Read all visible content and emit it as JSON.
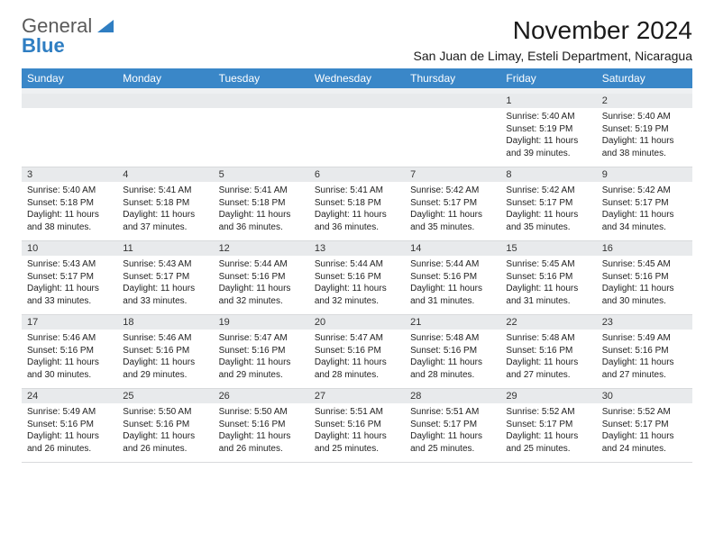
{
  "brand": {
    "line1": "General",
    "line2": "Blue"
  },
  "title": "November 2024",
  "location": "San Juan de Limay, Esteli Department, Nicaragua",
  "colors": {
    "header_bg": "#3a87c8",
    "header_fg": "#ffffff",
    "daynum_bg": "#e8eaec",
    "spacer_bg": "#eef0f2",
    "brand_gray": "#5a5a5a",
    "brand_blue": "#2f7ec2",
    "page_bg": "#ffffff"
  },
  "weekdays": [
    "Sunday",
    "Monday",
    "Tuesday",
    "Wednesday",
    "Thursday",
    "Friday",
    "Saturday"
  ],
  "weeks": [
    {
      "nums": [
        "",
        "",
        "",
        "",
        "",
        "1",
        "2"
      ],
      "cells": [
        null,
        null,
        null,
        null,
        null,
        {
          "sunrise": "Sunrise: 5:40 AM",
          "sunset": "Sunset: 5:19 PM",
          "day1": "Daylight: 11 hours",
          "day2": "and 39 minutes."
        },
        {
          "sunrise": "Sunrise: 5:40 AM",
          "sunset": "Sunset: 5:19 PM",
          "day1": "Daylight: 11 hours",
          "day2": "and 38 minutes."
        }
      ]
    },
    {
      "nums": [
        "3",
        "4",
        "5",
        "6",
        "7",
        "8",
        "9"
      ],
      "cells": [
        {
          "sunrise": "Sunrise: 5:40 AM",
          "sunset": "Sunset: 5:18 PM",
          "day1": "Daylight: 11 hours",
          "day2": "and 38 minutes."
        },
        {
          "sunrise": "Sunrise: 5:41 AM",
          "sunset": "Sunset: 5:18 PM",
          "day1": "Daylight: 11 hours",
          "day2": "and 37 minutes."
        },
        {
          "sunrise": "Sunrise: 5:41 AM",
          "sunset": "Sunset: 5:18 PM",
          "day1": "Daylight: 11 hours",
          "day2": "and 36 minutes."
        },
        {
          "sunrise": "Sunrise: 5:41 AM",
          "sunset": "Sunset: 5:18 PM",
          "day1": "Daylight: 11 hours",
          "day2": "and 36 minutes."
        },
        {
          "sunrise": "Sunrise: 5:42 AM",
          "sunset": "Sunset: 5:17 PM",
          "day1": "Daylight: 11 hours",
          "day2": "and 35 minutes."
        },
        {
          "sunrise": "Sunrise: 5:42 AM",
          "sunset": "Sunset: 5:17 PM",
          "day1": "Daylight: 11 hours",
          "day2": "and 35 minutes."
        },
        {
          "sunrise": "Sunrise: 5:42 AM",
          "sunset": "Sunset: 5:17 PM",
          "day1": "Daylight: 11 hours",
          "day2": "and 34 minutes."
        }
      ]
    },
    {
      "nums": [
        "10",
        "11",
        "12",
        "13",
        "14",
        "15",
        "16"
      ],
      "cells": [
        {
          "sunrise": "Sunrise: 5:43 AM",
          "sunset": "Sunset: 5:17 PM",
          "day1": "Daylight: 11 hours",
          "day2": "and 33 minutes."
        },
        {
          "sunrise": "Sunrise: 5:43 AM",
          "sunset": "Sunset: 5:17 PM",
          "day1": "Daylight: 11 hours",
          "day2": "and 33 minutes."
        },
        {
          "sunrise": "Sunrise: 5:44 AM",
          "sunset": "Sunset: 5:16 PM",
          "day1": "Daylight: 11 hours",
          "day2": "and 32 minutes."
        },
        {
          "sunrise": "Sunrise: 5:44 AM",
          "sunset": "Sunset: 5:16 PM",
          "day1": "Daylight: 11 hours",
          "day2": "and 32 minutes."
        },
        {
          "sunrise": "Sunrise: 5:44 AM",
          "sunset": "Sunset: 5:16 PM",
          "day1": "Daylight: 11 hours",
          "day2": "and 31 minutes."
        },
        {
          "sunrise": "Sunrise: 5:45 AM",
          "sunset": "Sunset: 5:16 PM",
          "day1": "Daylight: 11 hours",
          "day2": "and 31 minutes."
        },
        {
          "sunrise": "Sunrise: 5:45 AM",
          "sunset": "Sunset: 5:16 PM",
          "day1": "Daylight: 11 hours",
          "day2": "and 30 minutes."
        }
      ]
    },
    {
      "nums": [
        "17",
        "18",
        "19",
        "20",
        "21",
        "22",
        "23"
      ],
      "cells": [
        {
          "sunrise": "Sunrise: 5:46 AM",
          "sunset": "Sunset: 5:16 PM",
          "day1": "Daylight: 11 hours",
          "day2": "and 30 minutes."
        },
        {
          "sunrise": "Sunrise: 5:46 AM",
          "sunset": "Sunset: 5:16 PM",
          "day1": "Daylight: 11 hours",
          "day2": "and 29 minutes."
        },
        {
          "sunrise": "Sunrise: 5:47 AM",
          "sunset": "Sunset: 5:16 PM",
          "day1": "Daylight: 11 hours",
          "day2": "and 29 minutes."
        },
        {
          "sunrise": "Sunrise: 5:47 AM",
          "sunset": "Sunset: 5:16 PM",
          "day1": "Daylight: 11 hours",
          "day2": "and 28 minutes."
        },
        {
          "sunrise": "Sunrise: 5:48 AM",
          "sunset": "Sunset: 5:16 PM",
          "day1": "Daylight: 11 hours",
          "day2": "and 28 minutes."
        },
        {
          "sunrise": "Sunrise: 5:48 AM",
          "sunset": "Sunset: 5:16 PM",
          "day1": "Daylight: 11 hours",
          "day2": "and 27 minutes."
        },
        {
          "sunrise": "Sunrise: 5:49 AM",
          "sunset": "Sunset: 5:16 PM",
          "day1": "Daylight: 11 hours",
          "day2": "and 27 minutes."
        }
      ]
    },
    {
      "nums": [
        "24",
        "25",
        "26",
        "27",
        "28",
        "29",
        "30"
      ],
      "cells": [
        {
          "sunrise": "Sunrise: 5:49 AM",
          "sunset": "Sunset: 5:16 PM",
          "day1": "Daylight: 11 hours",
          "day2": "and 26 minutes."
        },
        {
          "sunrise": "Sunrise: 5:50 AM",
          "sunset": "Sunset: 5:16 PM",
          "day1": "Daylight: 11 hours",
          "day2": "and 26 minutes."
        },
        {
          "sunrise": "Sunrise: 5:50 AM",
          "sunset": "Sunset: 5:16 PM",
          "day1": "Daylight: 11 hours",
          "day2": "and 26 minutes."
        },
        {
          "sunrise": "Sunrise: 5:51 AM",
          "sunset": "Sunset: 5:16 PM",
          "day1": "Daylight: 11 hours",
          "day2": "and 25 minutes."
        },
        {
          "sunrise": "Sunrise: 5:51 AM",
          "sunset": "Sunset: 5:17 PM",
          "day1": "Daylight: 11 hours",
          "day2": "and 25 minutes."
        },
        {
          "sunrise": "Sunrise: 5:52 AM",
          "sunset": "Sunset: 5:17 PM",
          "day1": "Daylight: 11 hours",
          "day2": "and 25 minutes."
        },
        {
          "sunrise": "Sunrise: 5:52 AM",
          "sunset": "Sunset: 5:17 PM",
          "day1": "Daylight: 11 hours",
          "day2": "and 24 minutes."
        }
      ]
    }
  ]
}
